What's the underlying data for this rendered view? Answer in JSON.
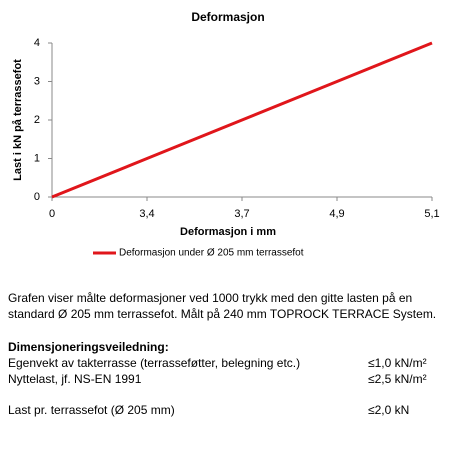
{
  "chart_data": {
    "type": "line",
    "title": "Deformasjon",
    "x_label": "Deformasjon  i mm",
    "y_label": "Last i kN på terrassefot",
    "categories": [
      "0",
      "3,4",
      "3,7",
      "4,9",
      "5,1"
    ],
    "series": [
      {
        "name": "Deformasjon under Ø 205 mm terrassefot",
        "color": "#e0161b",
        "values": [
          0,
          1,
          2,
          3,
          4
        ]
      }
    ],
    "ylim": [
      0,
      4
    ],
    "yticks": [
      0,
      1,
      2,
      3,
      4
    ],
    "grid": false,
    "legend": "bottom"
  },
  "document": {
    "paragraph": "Grafen viser målte deformasjoner ved 1000 trykk med den gitte lasten på en standard Ø 205  mm terrassefot. Målt på 240  mm TOPROCK TERRACE System.",
    "heading": "Dimensjoneringsveiledning:",
    "rows": [
      [
        "Egenvekt av takterrasse (terrasseføtter, belegning etc.)",
        "≤1,0 kN/m²"
      ],
      [
        "Nyttelast, jf. NS-EN 1991",
        "≤2,5 kN/m²"
      ],
      [
        "Last pr. terrassefot (Ø 205 mm)",
        "≤2,0 kN"
      ]
    ]
  }
}
